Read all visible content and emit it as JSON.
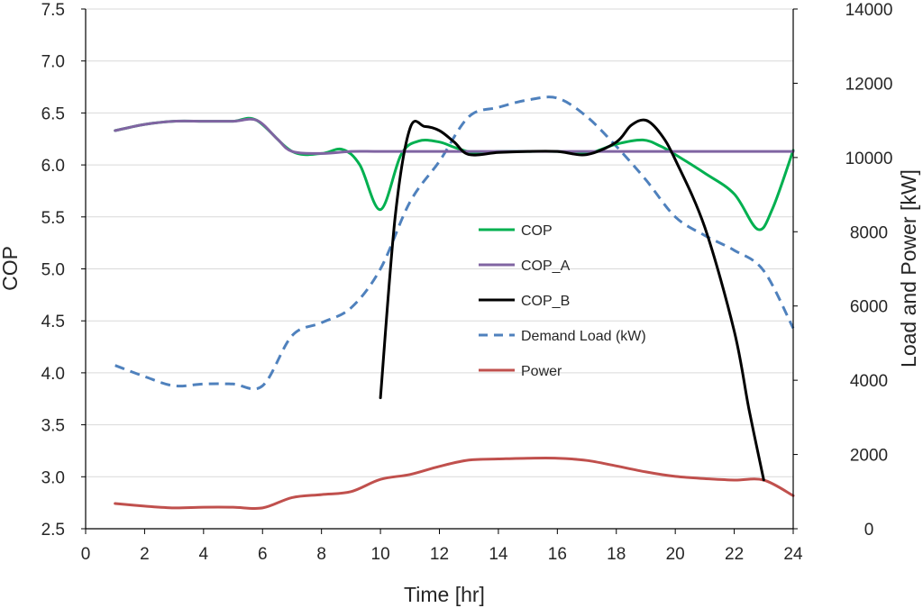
{
  "chart_data": {
    "type": "line",
    "title": "",
    "xlabel": "Time [hr]",
    "ylabel": "COP",
    "y2label": "Load and Power [kW]",
    "xlim": [
      0,
      24
    ],
    "ylim": [
      2.5,
      7.5
    ],
    "y2lim": [
      0,
      14000
    ],
    "x_ticks": [
      0,
      2,
      4,
      6,
      8,
      10,
      12,
      14,
      16,
      18,
      20,
      22,
      24
    ],
    "y_ticks": [
      "2.5",
      "3.0",
      "3.5",
      "4.0",
      "4.5",
      "5.0",
      "5.5",
      "6.0",
      "6.5",
      "7.0",
      "7.5"
    ],
    "y2_ticks": [
      "0",
      "2000",
      "4000",
      "6000",
      "8000",
      "10000",
      "12000",
      "14000"
    ],
    "grid": "horizontal",
    "legend_position": "center-right",
    "series": [
      {
        "name": "COP",
        "axis": "left",
        "color": "#00b050",
        "dash": "solid",
        "x": [
          1,
          2,
          3,
          4,
          5,
          5.8,
          7,
          8,
          8.7,
          9.3,
          10,
          10.7,
          11.3,
          12,
          12.6,
          13.3,
          14,
          15,
          16,
          17,
          18,
          18.9,
          19.5,
          20,
          21,
          22,
          22.8,
          23.3,
          24
        ],
        "y": [
          6.33,
          6.39,
          6.42,
          6.42,
          6.42,
          6.43,
          6.13,
          6.11,
          6.15,
          6.0,
          5.57,
          6.1,
          6.23,
          6.22,
          6.16,
          6.11,
          6.13,
          6.13,
          6.13,
          6.11,
          6.2,
          6.24,
          6.18,
          6.1,
          5.92,
          5.72,
          5.38,
          5.58,
          6.14
        ]
      },
      {
        "name": "COP_A",
        "axis": "left",
        "color": "#8064a2",
        "dash": "solid",
        "x": [
          1,
          2,
          3,
          4,
          5,
          5.8,
          6.5,
          7,
          8,
          9,
          10,
          12,
          14,
          16,
          18,
          20,
          22,
          24
        ],
        "y": [
          6.33,
          6.39,
          6.42,
          6.42,
          6.42,
          6.43,
          6.25,
          6.13,
          6.11,
          6.13,
          6.13,
          6.13,
          6.13,
          6.13,
          6.13,
          6.13,
          6.13,
          6.13
        ]
      },
      {
        "name": "COP_B",
        "axis": "left",
        "color": "#000000",
        "dash": "solid",
        "x": [
          10,
          10.5,
          11,
          11.5,
          12,
          12.5,
          13,
          14,
          15,
          16,
          17,
          18,
          18.5,
          19,
          19.5,
          20,
          21,
          22,
          22.5,
          23
        ],
        "y": [
          3.76,
          5.5,
          6.35,
          6.37,
          6.33,
          6.22,
          6.1,
          6.12,
          6.13,
          6.13,
          6.1,
          6.22,
          6.38,
          6.43,
          6.3,
          6.05,
          5.4,
          4.4,
          3.65,
          2.97
        ]
      },
      {
        "name": "Demand Load (kW)",
        "axis": "right",
        "color": "#4f81bd",
        "dash": "dashed",
        "x": [
          1,
          2,
          3,
          4,
          5,
          6,
          7,
          8,
          9,
          10,
          11,
          12,
          13,
          14,
          15,
          16,
          17,
          18,
          19,
          20,
          21,
          22,
          23,
          24
        ],
        "y": [
          4400,
          4100,
          3850,
          3900,
          3900,
          3850,
          5200,
          5550,
          5950,
          7000,
          8800,
          9900,
          11100,
          11350,
          11550,
          11600,
          11100,
          10300,
          9400,
          8400,
          7900,
          7500,
          6950,
          5400
        ]
      },
      {
        "name": "Power",
        "axis": "right",
        "color": "#c0504d",
        "dash": "solid",
        "x": [
          1,
          2,
          3,
          4,
          5,
          6,
          7,
          8,
          9,
          10,
          11,
          12,
          13,
          14,
          15,
          16,
          17,
          18,
          19,
          20,
          21,
          22,
          23,
          24
        ],
        "y": [
          680,
          610,
          560,
          580,
          580,
          560,
          840,
          920,
          1000,
          1330,
          1460,
          1680,
          1850,
          1880,
          1900,
          1900,
          1840,
          1690,
          1530,
          1410,
          1350,
          1310,
          1310,
          890
        ]
      }
    ]
  }
}
